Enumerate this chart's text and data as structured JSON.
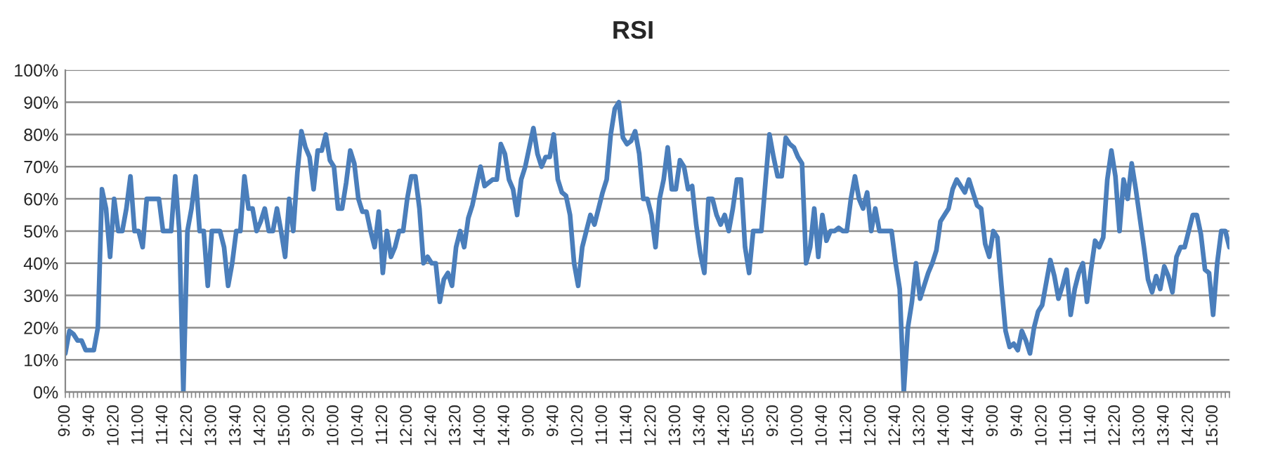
{
  "chart_data": {
    "type": "line",
    "title": "RSI",
    "categories": [
      "9:00",
      null,
      null,
      null,
      null,
      null,
      "9:40",
      null,
      null,
      null,
      null,
      null,
      "10:20",
      null,
      null,
      null,
      null,
      null,
      "11:00",
      null,
      null,
      null,
      null,
      null,
      "11:40",
      null,
      null,
      null,
      null,
      null,
      "12:20",
      null,
      null,
      null,
      null,
      null,
      "13:00",
      null,
      null,
      null,
      null,
      null,
      "13:40",
      null,
      null,
      null,
      null,
      null,
      "14:20",
      null,
      null,
      null,
      null,
      null,
      "15:00",
      null,
      null,
      null,
      null,
      null,
      "9:20",
      null,
      null,
      null,
      null,
      null,
      "10:00",
      null,
      null,
      null,
      null,
      null,
      "10:40",
      null,
      null,
      null,
      null,
      null,
      "11:20",
      null,
      null,
      null,
      null,
      null,
      "12:00",
      null,
      null,
      null,
      null,
      null,
      "12:40",
      null,
      null,
      null,
      null,
      null,
      "13:20",
      null,
      null,
      null,
      null,
      null,
      "14:00",
      null,
      null,
      null,
      null,
      null,
      "14:40",
      null,
      null,
      null,
      null,
      null,
      "9:00",
      null,
      null,
      null,
      null,
      null,
      "9:40",
      null,
      null,
      null,
      null,
      null,
      "10:20",
      null,
      null,
      null,
      null,
      null,
      "11:00",
      null,
      null,
      null,
      null,
      null,
      "11:40",
      null,
      null,
      null,
      null,
      null,
      "12:20",
      null,
      null,
      null,
      null,
      null,
      "13:00",
      null,
      null,
      null,
      null,
      null,
      "13:40",
      null,
      null,
      null,
      null,
      null,
      "14:20",
      null,
      null,
      null,
      null,
      null,
      "15:00",
      null,
      null,
      null,
      null,
      null,
      "9:20",
      null,
      null,
      null,
      null,
      null,
      "10:00",
      null,
      null,
      null,
      null,
      null,
      "10:40",
      null,
      null,
      null,
      null,
      null,
      "11:20",
      null,
      null,
      null,
      null,
      null,
      "12:00",
      null,
      null,
      null,
      null,
      null,
      "12:40",
      null,
      null,
      null,
      null,
      null,
      "13:20",
      null,
      null,
      null,
      null,
      null,
      "14:00",
      null,
      null,
      null,
      null,
      null,
      "14:40",
      null,
      null,
      null,
      null,
      null,
      "9:00",
      null,
      null,
      null,
      null,
      null,
      "9:40",
      null,
      null,
      null,
      null,
      null,
      "10:20",
      null,
      null,
      null,
      null,
      null,
      "11:00",
      null,
      null,
      null,
      null,
      null,
      "11:40",
      null,
      null,
      null,
      null,
      null,
      "12:20",
      null,
      null,
      null,
      null,
      null,
      "13:00",
      null,
      null,
      null,
      null,
      null,
      "13:40",
      null,
      null,
      null,
      null,
      null,
      "14:20",
      null,
      null,
      null,
      null,
      null,
      "15:00",
      null,
      null,
      null,
      null
    ],
    "series": [
      {
        "color": "#4a7ebb",
        "values": [
          12,
          19,
          18,
          16,
          16,
          13,
          13,
          13,
          20,
          63,
          57,
          42,
          60,
          50,
          50,
          57,
          67,
          50,
          50,
          45,
          60,
          60,
          60,
          60,
          50,
          50,
          50,
          67,
          50,
          0,
          50,
          57,
          67,
          50,
          50,
          33,
          50,
          50,
          50,
          45,
          33,
          40,
          50,
          50,
          67,
          57,
          57,
          50,
          53,
          57,
          50,
          50,
          57,
          50,
          42,
          60,
          50,
          68,
          81,
          76,
          73,
          63,
          75,
          75,
          80,
          72,
          70,
          57,
          57,
          65,
          75,
          71,
          60,
          56,
          56,
          50,
          45,
          56,
          37,
          50,
          42,
          45,
          50,
          50,
          60,
          67,
          67,
          57,
          40,
          42,
          40,
          40,
          28,
          35,
          37,
          33,
          45,
          50,
          45,
          54,
          58,
          64,
          70,
          64,
          65,
          66,
          66,
          77,
          74,
          66,
          63,
          55,
          66,
          70,
          76,
          82,
          74,
          70,
          73,
          73,
          80,
          66,
          62,
          61,
          55,
          40,
          33,
          45,
          50,
          55,
          52,
          57,
          62,
          66,
          80,
          88,
          90,
          79,
          77,
          78,
          81,
          74,
          60,
          60,
          55,
          45,
          60,
          66,
          76,
          63,
          63,
          72,
          70,
          63,
          64,
          52,
          43,
          37,
          60,
          60,
          55,
          52,
          55,
          50,
          57,
          66,
          66,
          45,
          37,
          50,
          50,
          50,
          65,
          80,
          73,
          67,
          67,
          79,
          77,
          76,
          73,
          71,
          40,
          45,
          57,
          42,
          55,
          47,
          50,
          50,
          51,
          50,
          50,
          60,
          67,
          60,
          57,
          62,
          50,
          57,
          50,
          50,
          50,
          50,
          40,
          32,
          0,
          20,
          28,
          40,
          29,
          33,
          37,
          40,
          44,
          53,
          55,
          57,
          63,
          66,
          64,
          62,
          66,
          62,
          58,
          57,
          46,
          42,
          50,
          48,
          33,
          19,
          14,
          15,
          13,
          19,
          16,
          12,
          20,
          25,
          27,
          34,
          41,
          36,
          29,
          33,
          38,
          24,
          32,
          37,
          40,
          28,
          38,
          47,
          45,
          48,
          66,
          75,
          67,
          50,
          66,
          60,
          71,
          63,
          54,
          45,
          35,
          31,
          36,
          32,
          39,
          36,
          31,
          42,
          45,
          45,
          50,
          55,
          55,
          49,
          38,
          37,
          24,
          40,
          50,
          50,
          45
        ]
      }
    ],
    "ylim": [
      0,
      100
    ],
    "yticks": [
      {
        "value": 0,
        "label": "0%"
      },
      {
        "value": 10,
        "label": "10%"
      },
      {
        "value": 20,
        "label": "20%"
      },
      {
        "value": 30,
        "label": "30%"
      },
      {
        "value": 40,
        "label": "40%"
      },
      {
        "value": 50,
        "label": "50%"
      },
      {
        "value": 60,
        "label": "60%"
      },
      {
        "value": 70,
        "label": "70%"
      },
      {
        "value": 80,
        "label": "80%"
      },
      {
        "value": 90,
        "label": "90%"
      },
      {
        "value": 100,
        "label": "100%"
      }
    ],
    "grid": "y",
    "marker": "none",
    "line_style": "solid"
  }
}
